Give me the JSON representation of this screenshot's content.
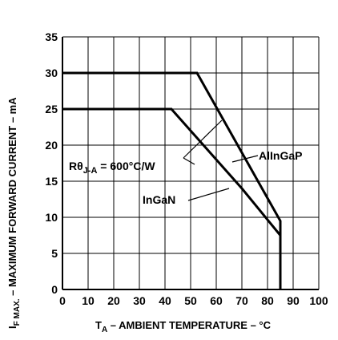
{
  "chart_data": {
    "type": "line",
    "xlabel_main": "T",
    "xlabel_sub": "A",
    "xlabel_rest": " – AMBIENT TEMPERATURE – °C",
    "ylabel_main": "I",
    "ylabel_sub": "F MAX.",
    "ylabel_rest": " – MAXIMUM FORWARD CURRENT – mA",
    "xlim": [
      0,
      100
    ],
    "ylim": [
      0,
      35
    ],
    "x_ticks": [
      0,
      10,
      20,
      30,
      40,
      50,
      60,
      70,
      80,
      90,
      100
    ],
    "y_ticks": [
      0,
      5,
      10,
      15,
      20,
      25,
      30,
      35
    ],
    "grid": true,
    "series": [
      {
        "name": "AlInGaP",
        "x": [
          0,
          52.5,
          85,
          85
        ],
        "y": [
          30,
          30,
          9.5,
          0
        ]
      },
      {
        "name": "InGaN",
        "x": [
          0,
          42.5,
          70,
          85,
          85
        ],
        "y": [
          25,
          25,
          14,
          7.5,
          0
        ]
      }
    ],
    "annotation": {
      "text_main": "Rθ",
      "text_sub": "J-A",
      "text_rest": " = 600°C/W"
    }
  }
}
